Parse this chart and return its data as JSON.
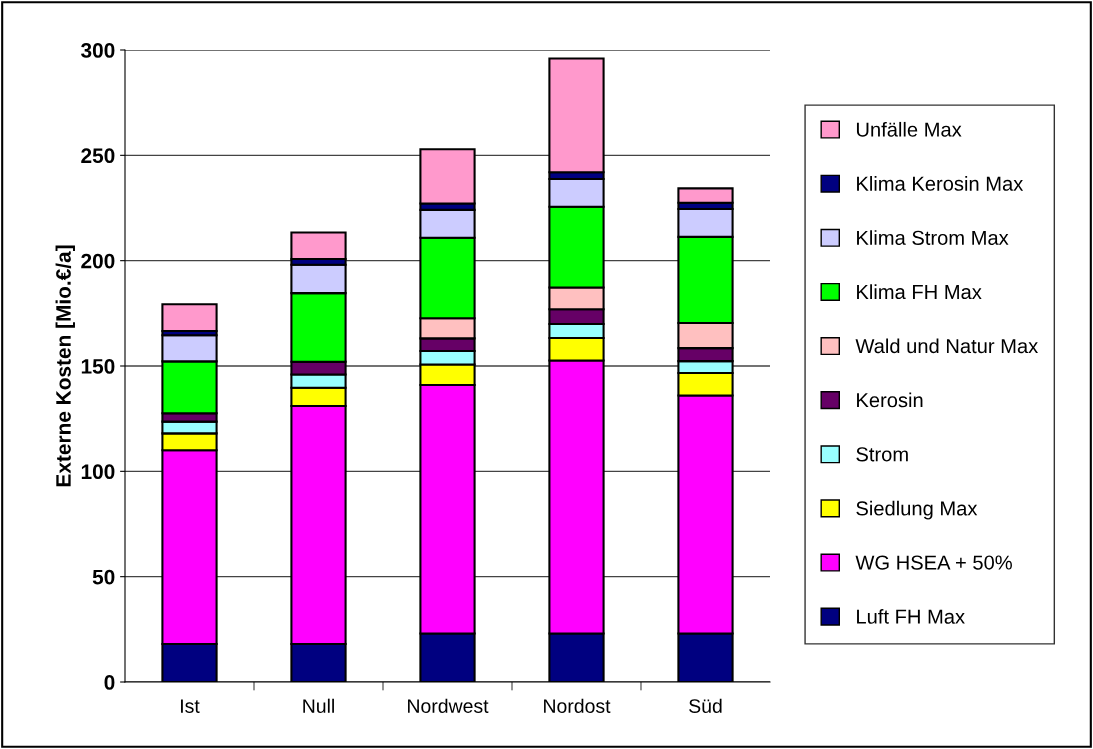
{
  "chart_data": {
    "type": "bar",
    "stacked": true,
    "ylabel": "Externe Kosten [Mio.€/a]",
    "categories": [
      "Ist",
      "Null",
      "Nordwest",
      "Nordost",
      "Süd"
    ],
    "ylim": [
      0,
      300
    ],
    "yticks": [
      0,
      50,
      100,
      150,
      200,
      250,
      300
    ],
    "grid": "y",
    "legend": "right",
    "series": [
      {
        "name": "Luft FH Max",
        "color": "#000080",
        "values": [
          18,
          18,
          23,
          23,
          23
        ]
      },
      {
        "name": "WG HSEA + 50%",
        "color": "#ff00ff",
        "values": [
          92,
          113,
          118,
          129.6,
          113
        ]
      },
      {
        "name": "Siedlung Max",
        "color": "#ffff00",
        "values": [
          8,
          8.7,
          9.7,
          10.7,
          10.7
        ]
      },
      {
        "name": "Strom",
        "color": "#99ffff",
        "values": [
          5.6,
          6.3,
          6.4,
          6.6,
          5.6
        ]
      },
      {
        "name": "Kerosin",
        "color": "#660066",
        "values": [
          4,
          6,
          6,
          7,
          6.2
        ]
      },
      {
        "name": "Wald und Natur Max",
        "color": "#ffc0c0",
        "values": [
          0,
          0,
          9.6,
          10.4,
          11.9
        ]
      },
      {
        "name": "Klima FH Max",
        "color": "#00ff00",
        "values": [
          24.6,
          32.6,
          38.2,
          38.3,
          40.9
        ]
      },
      {
        "name": "Klima Strom Max",
        "color": "#ccccff",
        "values": [
          12.4,
          13.5,
          13.2,
          13.2,
          13.2
        ]
      },
      {
        "name": "Klima Kerosin Max",
        "color": "#000080",
        "values": [
          2,
          2.7,
          3,
          3.2,
          3
        ]
      },
      {
        "name": "Unfälle Max",
        "color": "#ff99cc",
        "values": [
          12.7,
          12.6,
          25.8,
          54,
          6.8
        ]
      }
    ]
  }
}
